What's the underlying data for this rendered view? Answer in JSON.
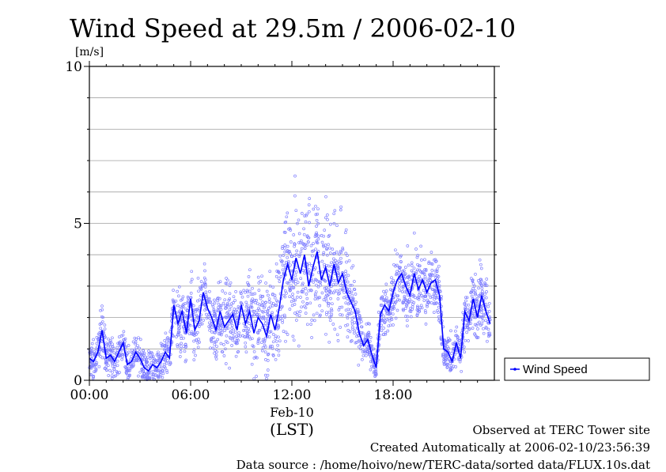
{
  "chart_data": {
    "type": "scatter",
    "title": "Wind Speed at 29.5m / 2006-02-10",
    "ylabel": "[m/s]",
    "ylim": [
      0,
      10
    ],
    "yticks": [
      0,
      5,
      10
    ],
    "xlim_hours": [
      0,
      24
    ],
    "xticks": [
      {
        "hour": 0,
        "label": "00:00"
      },
      {
        "hour": 6,
        "label": "06:00"
      },
      {
        "hour": 12,
        "label": "12:00"
      },
      {
        "hour": 18,
        "label": "18:00"
      }
    ],
    "date_label": "Feb-10",
    "time_zone_label": "(LST)",
    "grid": "horizontal",
    "legend": {
      "position": "right",
      "entries": [
        "Wind Speed"
      ]
    },
    "series": [
      {
        "name": "Wind Speed",
        "color": "#0000ff",
        "scatter_color": "#8080ff",
        "mean_line": {
          "hours": [
            0.0,
            0.25,
            0.5,
            0.75,
            1.0,
            1.25,
            1.5,
            1.75,
            2.0,
            2.25,
            2.5,
            2.75,
            3.0,
            3.25,
            3.5,
            3.75,
            4.0,
            4.25,
            4.5,
            4.75,
            5.0,
            5.25,
            5.5,
            5.75,
            6.0,
            6.25,
            6.5,
            6.75,
            7.0,
            7.25,
            7.5,
            7.75,
            8.0,
            8.25,
            8.5,
            8.75,
            9.0,
            9.25,
            9.5,
            9.75,
            10.0,
            10.25,
            10.5,
            10.75,
            11.0,
            11.25,
            11.5,
            11.75,
            12.0,
            12.25,
            12.5,
            12.75,
            13.0,
            13.25,
            13.5,
            13.75,
            14.0,
            14.25,
            14.5,
            14.75,
            15.0,
            15.25,
            15.5,
            15.75,
            16.0,
            16.25,
            16.5,
            16.75,
            17.0,
            17.25,
            17.5,
            17.75,
            18.0,
            18.25,
            18.5,
            18.75,
            19.0,
            19.25,
            19.5,
            19.75,
            20.0,
            20.25,
            20.5,
            20.75,
            21.0,
            21.25,
            21.5,
            21.75,
            22.0,
            22.25,
            22.5,
            22.75,
            23.0,
            23.25,
            23.5,
            23.75
          ],
          "values": [
            0.7,
            0.6,
            0.9,
            1.6,
            0.7,
            0.8,
            0.6,
            0.9,
            1.2,
            0.5,
            0.6,
            0.9,
            0.7,
            0.4,
            0.3,
            0.5,
            0.4,
            0.6,
            0.9,
            0.7,
            2.4,
            1.8,
            2.2,
            1.5,
            2.6,
            1.6,
            1.9,
            2.8,
            2.3,
            2.0,
            1.6,
            2.2,
            1.7,
            1.9,
            2.1,
            1.6,
            2.4,
            1.8,
            2.2,
            1.5,
            2.0,
            1.8,
            1.4,
            2.1,
            1.6,
            2.3,
            3.2,
            3.7,
            3.2,
            3.9,
            3.4,
            4.0,
            3.0,
            3.6,
            4.1,
            3.2,
            3.6,
            3.0,
            3.7,
            3.1,
            3.4,
            2.8,
            2.5,
            2.2,
            1.5,
            1.1,
            1.3,
            0.8,
            0.4,
            2.1,
            2.4,
            2.2,
            2.8,
            3.2,
            3.4,
            3.0,
            2.7,
            3.4,
            2.9,
            3.2,
            2.8,
            3.1,
            3.2,
            2.7,
            1.0,
            0.9,
            0.6,
            1.2,
            0.7,
            2.2,
            1.9,
            2.6,
            2.0,
            2.7,
            2.2,
            1.8
          ],
          "spread": [
            0.3,
            0.3,
            0.3,
            0.4,
            0.3,
            0.3,
            0.3,
            0.3,
            0.3,
            0.3,
            0.3,
            0.3,
            0.3,
            0.3,
            0.3,
            0.3,
            0.3,
            0.3,
            0.3,
            0.3,
            0.5,
            0.5,
            0.5,
            0.5,
            0.5,
            0.5,
            0.5,
            0.5,
            0.5,
            0.5,
            0.5,
            0.5,
            0.6,
            0.6,
            0.6,
            0.6,
            0.6,
            0.6,
            0.7,
            0.7,
            0.7,
            0.7,
            0.8,
            0.8,
            0.8,
            0.8,
            0.9,
            1.0,
            1.0,
            1.1,
            1.1,
            1.1,
            1.1,
            1.0,
            1.0,
            1.0,
            1.0,
            0.9,
            0.9,
            0.9,
            0.8,
            0.7,
            0.6,
            0.5,
            0.4,
            0.3,
            0.3,
            0.3,
            0.2,
            0.4,
            0.5,
            0.5,
            0.5,
            0.5,
            0.5,
            0.5,
            0.5,
            0.5,
            0.5,
            0.5,
            0.5,
            0.5,
            0.5,
            0.5,
            0.3,
            0.3,
            0.3,
            0.3,
            0.3,
            0.4,
            0.4,
            0.5,
            0.5,
            0.5,
            0.5,
            0.4
          ]
        }
      }
    ]
  },
  "notes": {
    "site": "Observed at TERC Tower site",
    "created": "Created Automatically at 2006-02-10/23:56:39",
    "source": "Data source : /home/hoivo/new/TERC-data/sorted data/FLUX.10s.dat"
  }
}
